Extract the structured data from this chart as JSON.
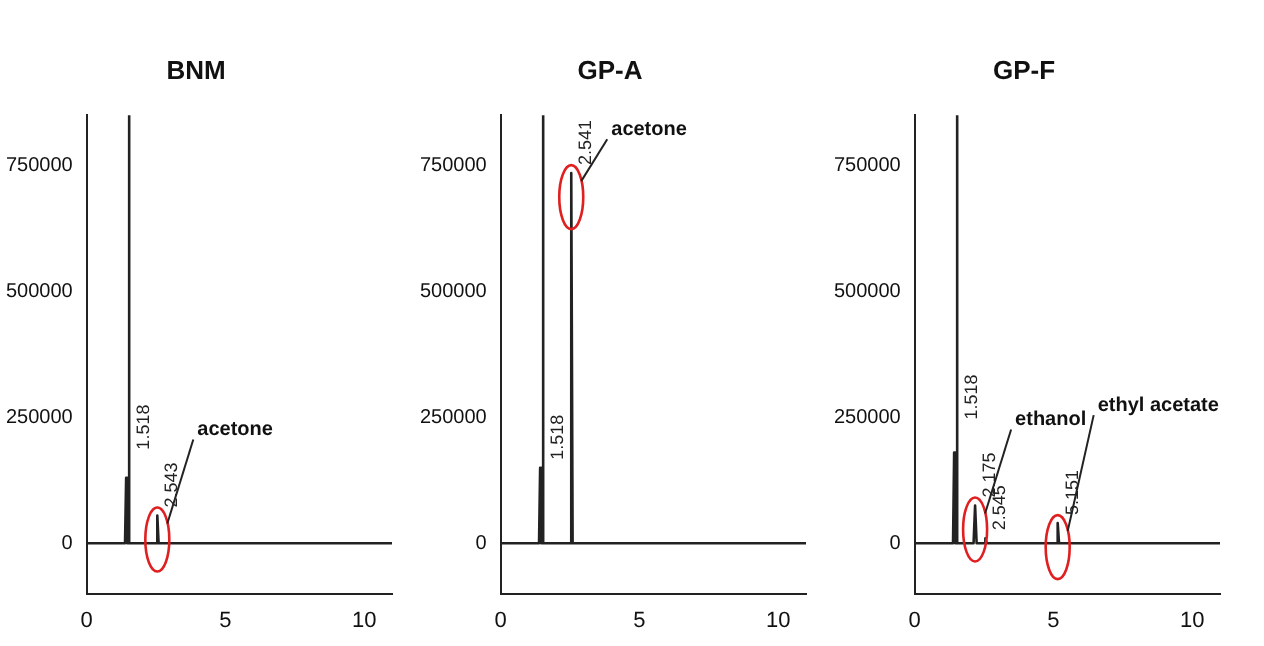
{
  "chart_data": [
    {
      "type": "line",
      "title": "BNM",
      "xlim": [
        0,
        11
      ],
      "ylim": [
        -100000,
        850000
      ],
      "xticks": [
        0,
        5,
        10
      ],
      "yticks": [
        0,
        250000,
        500000,
        750000
      ],
      "marker": "none",
      "series": [
        {
          "color": "#222222",
          "x": [
            0,
            1.38,
            1.42,
            1.46,
            1.5,
            1.518,
            1.54,
            2.5,
            2.543,
            2.59,
            11
          ],
          "values": [
            0,
            0,
            130000,
            0,
            0,
            850000,
            0,
            0,
            55000,
            0,
            0
          ]
        }
      ],
      "annotations": [
        {
          "text": "1.518",
          "x": 1.518,
          "y": 170000
        },
        {
          "text": "2.543",
          "x": 2.543,
          "y": 55000
        },
        {
          "text": "acetone",
          "x": 2.543,
          "y": 55000
        }
      ]
    },
    {
      "type": "line",
      "title": "GP-A",
      "xlim": [
        0,
        11
      ],
      "ylim": [
        -100000,
        850000
      ],
      "xticks": [
        0,
        5,
        10
      ],
      "yticks": [
        0,
        250000,
        500000,
        750000
      ],
      "marker": "none",
      "series": [
        {
          "color": "#222222",
          "x": [
            0,
            1.38,
            1.42,
            1.46,
            1.5,
            1.518,
            1.54,
            2.5,
            2.541,
            2.59,
            11
          ],
          "values": [
            0,
            0,
            150000,
            0,
            0,
            850000,
            0,
            0,
            735000,
            0,
            0
          ]
        }
      ],
      "annotations": [
        {
          "text": "1.518",
          "x": 1.518,
          "y": 150000
        },
        {
          "text": "2.541",
          "x": 2.541,
          "y": 735000
        },
        {
          "text": "acetone",
          "x": 2.541,
          "y": 735000
        }
      ]
    },
    {
      "type": "line",
      "title": "GP-F",
      "xlim": [
        0,
        11
      ],
      "ylim": [
        -100000,
        850000
      ],
      "xticks": [
        0,
        5,
        10
      ],
      "yticks": [
        0,
        250000,
        500000,
        750000
      ],
      "marker": "none",
      "series": [
        {
          "color": "#222222",
          "x": [
            0,
            1.38,
            1.42,
            1.46,
            1.5,
            1.518,
            1.54,
            2.12,
            2.175,
            2.23,
            2.5,
            2.545,
            2.59,
            5.1,
            5.151,
            5.2,
            11
          ],
          "values": [
            0,
            0,
            180000,
            0,
            0,
            850000,
            0,
            0,
            75000,
            0,
            0,
            10000,
            0,
            0,
            40000,
            0,
            0
          ]
        }
      ],
      "annotations": [
        {
          "text": "1.518",
          "x": 1.518,
          "y": 230000
        },
        {
          "text": "2.175",
          "x": 2.175,
          "y": 75000
        },
        {
          "text": "2.545",
          "x": 2.545,
          "y": 10000
        },
        {
          "text": "5.151",
          "x": 5.151,
          "y": 40000
        },
        {
          "text": "ethanol",
          "x": 2.175,
          "y": 75000
        },
        {
          "text": "ethyl acetate",
          "x": 5.151,
          "y": 40000
        }
      ]
    }
  ]
}
